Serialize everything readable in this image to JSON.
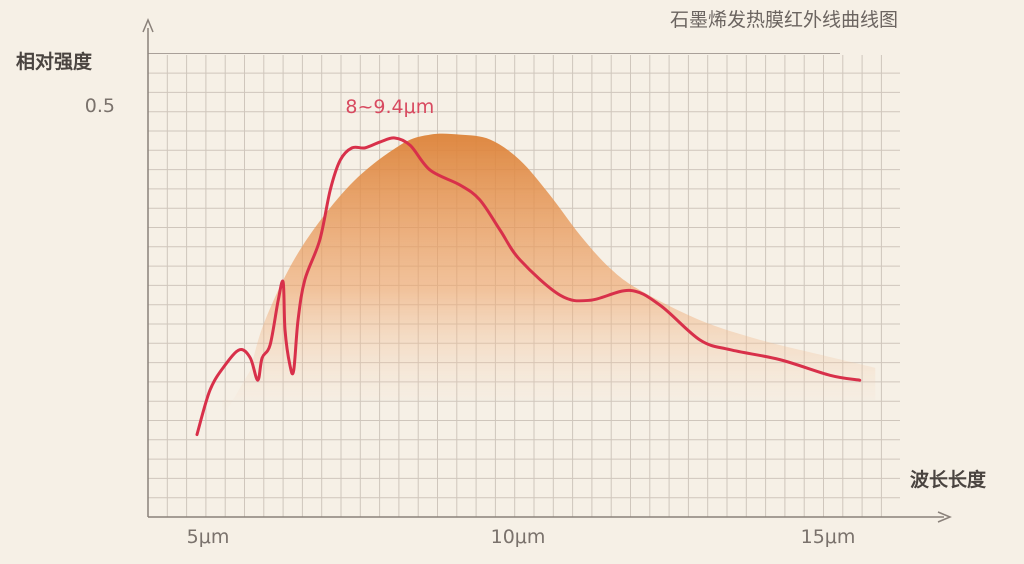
{
  "chart_data": {
    "type": "line",
    "title": "石墨烯发热膜红外线曲线图",
    "xlabel": "波长长度",
    "ylabel": "相对强度",
    "x_ticks": [
      {
        "value": 5,
        "label": "5μm"
      },
      {
        "value": 10,
        "label": "10μm"
      },
      {
        "value": 15,
        "label": "15μm"
      }
    ],
    "y_ticks": [
      {
        "value": 0.5,
        "label": "0.5"
      }
    ],
    "xlim": [
      4.2,
      16.3
    ],
    "ylim": [
      0,
      0.56
    ],
    "grid": true,
    "annotation": {
      "text": "8~9.4μm",
      "x": 7.9,
      "y": 0.49
    },
    "colors": {
      "background": "#f6f0e6",
      "grid": "#cfc6bc",
      "axis": "#8a817a",
      "measured": "#d8304a",
      "reference": "#e08a3c"
    },
    "series": [
      {
        "kind": "line",
        "color": "#d8304a",
        "x": [
          4.79,
          5.0,
          5.24,
          5.48,
          5.65,
          5.77,
          5.84,
          5.97,
          6.1,
          6.18,
          6.21,
          6.29,
          6.35,
          6.42,
          6.53,
          6.77,
          6.94,
          7.1,
          7.29,
          7.5,
          7.74,
          7.98,
          8.23,
          8.55,
          9.03,
          9.35,
          9.68,
          10.0,
          10.65,
          11.13,
          11.77,
          12.26,
          12.9,
          13.39,
          14.19,
          15.0,
          15.48
        ],
        "y": [
          0.1,
          0.154,
          0.184,
          0.203,
          0.193,
          0.166,
          0.193,
          0.209,
          0.263,
          0.285,
          0.227,
          0.184,
          0.178,
          0.239,
          0.288,
          0.336,
          0.397,
          0.433,
          0.448,
          0.448,
          0.455,
          0.46,
          0.451,
          0.421,
          0.403,
          0.385,
          0.348,
          0.312,
          0.269,
          0.263,
          0.275,
          0.257,
          0.215,
          0.203,
          0.191,
          0.172,
          0.166
        ]
      },
      {
        "kind": "area",
        "color": "#e08a3c",
        "x": [
          5.65,
          5.89,
          6.45,
          7.26,
          8.06,
          8.55,
          9.03,
          9.52,
          10.0,
          10.48,
          10.97,
          11.45,
          11.94,
          12.9,
          13.87,
          14.84,
          15.73
        ],
        "y": [
          0.178,
          0.239,
          0.324,
          0.403,
          0.451,
          0.464,
          0.464,
          0.458,
          0.433,
          0.391,
          0.342,
          0.302,
          0.275,
          0.239,
          0.215,
          0.197,
          0.181
        ]
      }
    ]
  }
}
